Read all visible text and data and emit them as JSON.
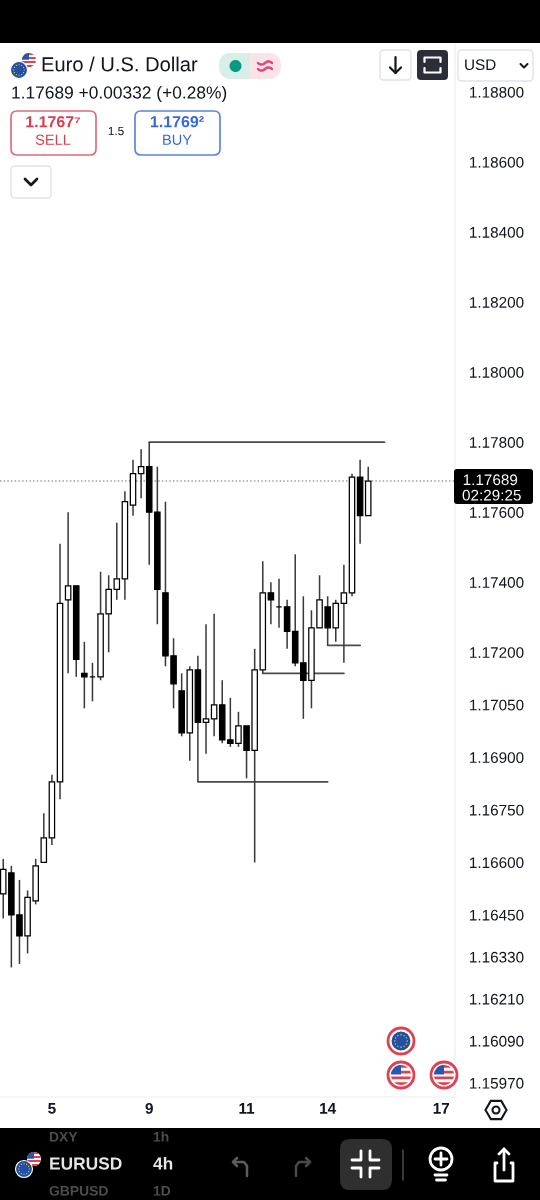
{
  "chart_data": {
    "type": "candlestick",
    "title": "Euro / U.S. Dollar",
    "subtitle": "1.17689 +0.00332 (+0.28%)",
    "categories": [
      null,
      null,
      null,
      null,
      null,
      null,
      "5",
      null,
      null,
      null,
      null,
      null,
      null,
      null,
      null,
      null,
      null,
      null,
      "9",
      null,
      null,
      null,
      null,
      null,
      null,
      null,
      null,
      null,
      null,
      null,
      "11",
      null,
      null,
      null,
      null,
      null,
      null,
      null,
      null,
      null,
      "14",
      null,
      null,
      null,
      null,
      null,
      null,
      null,
      null,
      null,
      null,
      null,
      null,
      null,
      "17",
      null
    ],
    "series": [
      {
        "ohlc": [
          [
            1.1651,
            1.1661,
            1.1644,
            1.1658
          ],
          [
            1.1657,
            1.1659,
            1.163,
            1.1645
          ],
          [
            1.1645,
            1.1655,
            1.1631,
            1.1639
          ],
          [
            1.1639,
            1.1652,
            1.1634,
            1.165
          ],
          [
            1.1649,
            1.1661,
            1.1648,
            1.1659
          ],
          [
            1.166,
            1.1674,
            1.166,
            1.1667
          ],
          [
            1.1667,
            1.1685,
            1.1665,
            1.1683
          ],
          [
            1.1683,
            1.1751,
            1.1678,
            1.1734
          ],
          [
            1.1735,
            1.176,
            1.1714,
            1.1739
          ],
          [
            1.1739,
            1.1739,
            1.1713,
            1.1718
          ],
          [
            1.1714,
            1.1723,
            1.1704,
            1.1713
          ],
          [
            1.1713,
            1.1717,
            1.1706,
            1.1713
          ],
          [
            1.1713,
            1.1743,
            1.1712,
            1.1731
          ],
          [
            1.1731,
            1.1742,
            1.172,
            1.1738
          ],
          [
            1.1738,
            1.1757,
            1.1735,
            1.1741
          ],
          [
            1.1741,
            1.1766,
            1.1735,
            1.1763
          ],
          [
            1.1762,
            1.1775,
            1.1759,
            1.1771
          ],
          [
            1.1771,
            1.1778,
            1.1764,
            1.1773
          ],
          [
            1.1773,
            1.178,
            1.1745,
            1.176
          ],
          [
            1.176,
            1.1773,
            1.1728,
            1.1738
          ],
          [
            1.1737,
            1.1763,
            1.1716,
            1.1719
          ],
          [
            1.1719,
            1.1724,
            1.1704,
            1.1711
          ],
          [
            1.1709,
            1.1714,
            1.1696,
            1.1697
          ],
          [
            1.1697,
            1.1716,
            1.1689,
            1.1715
          ],
          [
            1.1715,
            1.1719,
            1.1683,
            1.17
          ],
          [
            1.17,
            1.1728,
            1.1691,
            1.1701
          ],
          [
            1.1701,
            1.1731,
            1.1696,
            1.1705
          ],
          [
            1.1705,
            1.1712,
            1.1694,
            1.1695
          ],
          [
            1.1695,
            1.1707,
            1.1693,
            1.1694
          ],
          [
            1.1694,
            1.1703,
            1.1693,
            1.1699
          ],
          [
            1.1699,
            1.1699,
            1.1684,
            1.1692
          ],
          [
            1.1692,
            1.1721,
            1.166,
            1.1715
          ],
          [
            1.1715,
            1.1746,
            1.1714,
            1.1737
          ],
          [
            1.1737,
            1.174,
            1.1728,
            1.1735
          ],
          [
            1.1733,
            1.1741,
            1.1727,
            1.1733
          ],
          [
            1.1733,
            1.1735,
            1.1721,
            1.1726
          ],
          [
            1.1726,
            1.1748,
            1.1716,
            1.1717
          ],
          [
            1.1717,
            1.1736,
            1.1701,
            1.1712
          ],
          [
            1.1712,
            1.1732,
            1.1704,
            1.1727
          ],
          [
            1.1727,
            1.1742,
            1.1727,
            1.1735
          ],
          [
            1.1733,
            1.1736,
            1.1722,
            1.1727
          ],
          [
            1.1727,
            1.1735,
            1.1723,
            1.1734
          ],
          [
            1.1734,
            1.1745,
            1.1717,
            1.1737
          ],
          [
            1.1737,
            1.1771,
            1.1736,
            1.177
          ],
          [
            1.177,
            1.1775,
            1.1751,
            1.1759
          ],
          [
            1.1759,
            1.1773,
            1.1759,
            1.17689
          ],
          null,
          null,
          null,
          null,
          null,
          null,
          null,
          null,
          null,
          null
        ],
        "colors": [
          "#ffffff",
          "#000000",
          "#000000",
          "#ffffff",
          "#ffffff",
          "#ffffff",
          "#ffffff",
          "#ffffff",
          "#ffffff",
          "#000000",
          "#000000",
          "#000000",
          "#ffffff",
          "#ffffff",
          "#ffffff",
          "#ffffff",
          "#ffffff",
          "#ffffff",
          "#000000",
          "#000000",
          "#000000",
          "#000000",
          "#000000",
          "#ffffff",
          "#000000",
          "#ffffff",
          "#ffffff",
          "#000000",
          "#000000",
          "#ffffff",
          "#000000",
          "#ffffff",
          "#ffffff",
          "#000000",
          "#000000",
          "#000000",
          "#000000",
          "#000000",
          "#ffffff",
          "#ffffff",
          "#000000",
          "#ffffff",
          "#ffffff",
          "#ffffff",
          "#000000",
          "#ffffff",
          null,
          null,
          null,
          null,
          null,
          null,
          null,
          null,
          null,
          null
        ]
      },
      {
        "type": "line",
        "color": "#4a4a4a",
        "values": [
          null,
          null,
          null,
          null,
          null,
          null,
          null,
          null,
          null,
          null,
          null,
          null,
          null,
          null,
          null,
          null,
          null,
          null,
          1.178,
          1.178,
          1.178,
          1.178,
          1.178,
          1.178,
          1.178,
          1.178,
          1.178,
          1.178,
          1.178,
          1.178,
          1.178,
          1.178,
          1.178,
          1.178,
          1.178,
          1.178,
          1.178,
          1.178,
          1.178,
          1.178,
          1.178,
          1.178,
          1.178,
          1.178,
          1.178,
          1.178,
          1.178,
          1.178,
          null,
          null,
          null,
          null,
          null,
          null,
          null,
          null
        ]
      },
      {
        "type": "line",
        "color": "#4a4a4a",
        "values": [
          null,
          null,
          null,
          null,
          null,
          null,
          null,
          null,
          null,
          null,
          null,
          null,
          null,
          null,
          null,
          null,
          null,
          null,
          null,
          null,
          null,
          null,
          null,
          null,
          1.1683,
          1.1683,
          1.1683,
          1.1683,
          1.1683,
          1.1683,
          1.1683,
          1.1683,
          1.1683,
          1.1683,
          1.1683,
          1.1683,
          1.1683,
          1.1683,
          1.1683,
          1.1683,
          1.1683,
          null,
          null,
          null,
          null,
          null,
          null,
          null,
          null,
          null,
          null,
          null,
          null,
          null,
          null,
          null
        ]
      },
      {
        "type": "line",
        "color": "#4a4a4a",
        "values": [
          null,
          null,
          null,
          null,
          null,
          null,
          null,
          null,
          null,
          null,
          null,
          null,
          null,
          null,
          null,
          null,
          null,
          null,
          null,
          null,
          null,
          null,
          null,
          null,
          null,
          null,
          null,
          null,
          null,
          null,
          null,
          null,
          1.1714,
          1.1714,
          1.1714,
          1.1714,
          1.1714,
          1.1714,
          1.1714,
          1.1714,
          1.1714,
          1.1714,
          1.1714,
          null,
          null,
          null,
          null,
          null,
          null,
          null,
          null,
          null,
          null,
          null,
          null,
          null
        ]
      },
      {
        "type": "line",
        "color": "#4a4a4a",
        "values": [
          null,
          null,
          null,
          null,
          null,
          null,
          null,
          null,
          null,
          null,
          null,
          null,
          null,
          null,
          null,
          null,
          null,
          null,
          null,
          null,
          null,
          null,
          null,
          null,
          null,
          null,
          null,
          null,
          null,
          null,
          null,
          null,
          null,
          null,
          null,
          null,
          null,
          null,
          null,
          null,
          1.1722,
          1.1722,
          1.1722,
          1.1722,
          1.1722,
          null,
          null,
          null,
          null,
          null,
          null,
          null,
          null,
          null,
          null,
          null
        ]
      }
    ],
    "ylim": [
      1.1593,
      1.1894
    ],
    "yticks": [
      {
        "value": 1.188,
        "label": "1.18800"
      },
      {
        "value": 1.186,
        "label": "1.18600"
      },
      {
        "value": 1.184,
        "label": "1.18400"
      },
      {
        "value": 1.182,
        "label": "1.18200"
      },
      {
        "value": 1.18,
        "label": "1.18000"
      },
      {
        "value": 1.178,
        "label": "1.17800"
      },
      {
        "value": 1.176,
        "label": "1.17600"
      },
      {
        "value": 1.174,
        "label": "1.17400"
      },
      {
        "value": 1.172,
        "label": "1.17200"
      },
      {
        "value": 1.1705,
        "label": "1.17050"
      },
      {
        "value": 1.169,
        "label": "1.16900"
      },
      {
        "value": 1.1675,
        "label": "1.16750"
      },
      {
        "value": 1.166,
        "label": "1.16600"
      },
      {
        "value": 1.1645,
        "label": "1.16450"
      },
      {
        "value": 1.1633,
        "label": "1.16330"
      },
      {
        "value": 1.1621,
        "label": "1.16210"
      },
      {
        "value": 1.1609,
        "label": "1.16090"
      },
      {
        "value": 1.1597,
        "label": "1.15970"
      }
    ],
    "ref_lines": [
      {
        "axis": "y",
        "value": 1.17689,
        "label": "1.17689",
        "color": "#9598a1",
        "line_style": "dotted"
      }
    ],
    "annotations": [
      "1.1767⁷",
      "SELL",
      "1.5",
      "1.1769²",
      "BUY",
      "USD",
      "02:29:25",
      "EURUSD",
      "4h",
      "DXY",
      "1h",
      "GBPUSD",
      "1D"
    ]
  }
}
